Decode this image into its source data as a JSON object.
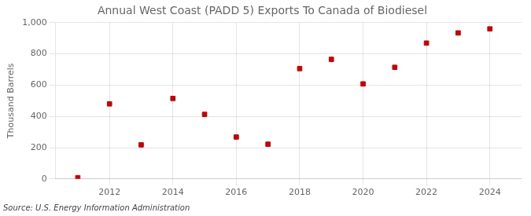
{
  "chart_data": {
    "type": "scatter",
    "title": "Annual West Coast (PADD 5) Exports To Canada of Biodiesel",
    "ylabel": "Thousand Barrels",
    "annotations": [
      "Source: U.S. Energy Information Administration"
    ],
    "x": [
      2011,
      2012,
      2013,
      2014,
      2015,
      2016,
      2017,
      2018,
      2019,
      2020,
      2021,
      2022,
      2023,
      2024
    ],
    "values": [
      8,
      480,
      218,
      515,
      413,
      268,
      222,
      706,
      765,
      608,
      714,
      869,
      934,
      960
    ],
    "color": "#cc0000",
    "marker": "square",
    "xlim": [
      2010.3,
      2025.0
    ],
    "xticks": [
      2012,
      2014,
      2016,
      2018,
      2020,
      2022,
      2024
    ],
    "ylim": [
      0,
      1000
    ],
    "yticks": [
      0,
      200,
      400,
      600,
      800,
      {
        "value": 1000,
        "label": "1,000"
      }
    ],
    "grid": true
  }
}
